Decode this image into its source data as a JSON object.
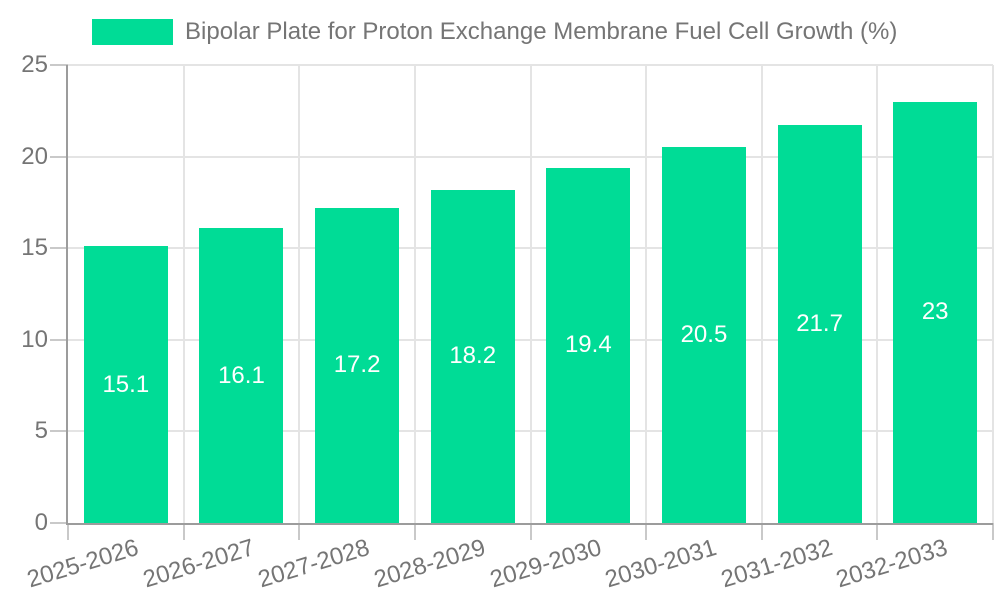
{
  "chart_data": {
    "type": "bar",
    "title": "Bipolar Plate for Proton Exchange Membrane Fuel Cell Growth (%)",
    "categories": [
      "2025-2026",
      "2026-2027",
      "2027-2028",
      "2028-2029",
      "2029-2030",
      "2030-2031",
      "2031-2032",
      "2032-2033"
    ],
    "values": [
      15.1,
      16.1,
      17.2,
      18.2,
      19.4,
      20.5,
      21.7,
      23
    ],
    "value_labels": [
      "15.1",
      "16.1",
      "17.2",
      "18.2",
      "19.4",
      "20.5",
      "21.7",
      "23"
    ],
    "xlabel": "",
    "ylabel": "",
    "ylim": [
      0,
      25
    ],
    "y_ticks": [
      0,
      5,
      10,
      15,
      20,
      25
    ],
    "y_tick_labels": [
      "0",
      "5",
      "10",
      "15",
      "20",
      "25"
    ],
    "grid": true,
    "legend_position": "top-left",
    "colors": {
      "bar": "#00dc96",
      "value_label": "#ffffff",
      "grid": "#e4e4e4",
      "axis": "#9c9c9c",
      "tick_mark": "#c9c9c9",
      "tick_text": "#757575",
      "background": "#ffffff"
    }
  }
}
